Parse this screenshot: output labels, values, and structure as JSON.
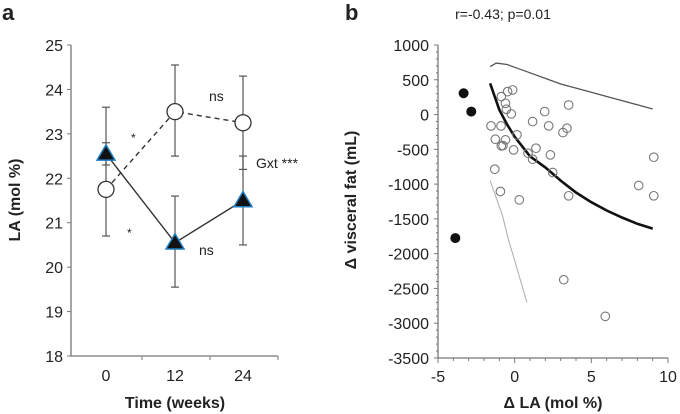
{
  "chart_data": [
    {
      "panel_label": "a",
      "type": "line",
      "xlabel": "Time (weeks)",
      "ylabel": "LA (mol %)",
      "categories": [
        "0",
        "12",
        "24"
      ],
      "x": [
        0,
        12,
        24
      ],
      "ylim": [
        18,
        25
      ],
      "yticks": [
        "18",
        "19",
        "20",
        "21",
        "22",
        "23",
        "24",
        "25"
      ],
      "grid": false,
      "series": [
        {
          "name": "open circles (dashed)",
          "marker": "circle-open",
          "line": "dashed",
          "values": [
            21.75,
            23.5,
            23.25
          ],
          "err_low": [
            20.7,
            22.5,
            22.2
          ],
          "err_high": [
            23.6,
            24.55,
            24.3
          ]
        },
        {
          "name": "filled triangles (solid)",
          "marker": "triangle-filled",
          "line": "solid",
          "values": [
            22.55,
            20.55,
            21.5
          ],
          "err_low": [
            22.3,
            19.55,
            20.5
          ],
          "err_high": [
            22.8,
            21.6,
            22.5
          ]
        }
      ],
      "annotations": {
        "star_upper": "*",
        "star_lower": "*",
        "ns_upper": "ns",
        "ns_lower": "ns",
        "interaction": "Gxt ***"
      },
      "colors": {
        "triangle_fill": "#111111",
        "triangle_edge": "#1e7fc0",
        "line": "#333333"
      }
    },
    {
      "panel_label": "b",
      "type": "scatter",
      "title": "r=-0.43; p=0.01",
      "xlabel": "Δ LA (mol %)",
      "ylabel": "Δ visceral fat (mL)",
      "xlim": [
        -5,
        10
      ],
      "ylim": [
        -3500,
        1000
      ],
      "xticks": [
        "-5",
        "0",
        "5",
        "10"
      ],
      "yticks": [
        "1000",
        "500",
        "0",
        "-500",
        "-1000",
        "-1500",
        "-2000",
        "-2500",
        "-3000",
        "-3500"
      ],
      "grid": false,
      "filled_points": [
        [
          -3.33,
          306
        ],
        [
          -2.83,
          43
        ],
        [
          -3.87,
          -1776
        ]
      ],
      "open_points": [
        [
          -1.54,
          -163
        ],
        [
          -0.89,
          -163
        ],
        [
          -1.26,
          -355
        ],
        [
          -0.87,
          -450
        ],
        [
          -1.3,
          -786
        ],
        [
          -0.93,
          -1106
        ],
        [
          -0.87,
          258
        ],
        [
          -0.46,
          330
        ],
        [
          -0.13,
          354
        ],
        [
          -0.6,
          162
        ],
        [
          -0.54,
          76
        ],
        [
          -0.22,
          9
        ],
        [
          -0.6,
          -364
        ],
        [
          -0.76,
          -446
        ],
        [
          0.15,
          -292
        ],
        [
          -0.07,
          -508
        ],
        [
          0.3,
          -1226
        ],
        [
          1.17,
          -101
        ],
        [
          1.96,
          43
        ],
        [
          2.22,
          -163
        ],
        [
          1.39,
          -484
        ],
        [
          0.87,
          -556
        ],
        [
          1.17,
          -642
        ],
        [
          2.33,
          -580
        ],
        [
          2.48,
          -833
        ],
        [
          3.15,
          -259
        ],
        [
          3.41,
          -197
        ],
        [
          3.52,
          138
        ],
        [
          3.52,
          -1168
        ],
        [
          3.2,
          -2375
        ],
        [
          5.91,
          -2901
        ],
        [
          8.09,
          -1020
        ],
        [
          9.07,
          -613
        ],
        [
          9.07,
          -1168
        ]
      ],
      "fit_curve": [
        [
          -1.6,
          450
        ],
        [
          -1,
          70
        ],
        [
          -0.5,
          -140
        ],
        [
          0,
          -320
        ],
        [
          1,
          -600
        ],
        [
          2,
          -760
        ],
        [
          3,
          -950
        ],
        [
          4,
          -1120
        ],
        [
          5,
          -1260
        ],
        [
          6,
          -1380
        ],
        [
          7,
          -1480
        ],
        [
          8,
          -1570
        ],
        [
          9,
          -1640
        ]
      ],
      "upper_ci": [
        [
          -1.6,
          690
        ],
        [
          -1.2,
          740
        ],
        [
          -0.5,
          720
        ],
        [
          0,
          680
        ],
        [
          1,
          600
        ],
        [
          2,
          520
        ],
        [
          3,
          440
        ],
        [
          4,
          380
        ],
        [
          5,
          320
        ],
        [
          6,
          260
        ],
        [
          7,
          200
        ],
        [
          8,
          140
        ],
        [
          9,
          80
        ]
      ],
      "lower_ci": [
        [
          -1.6,
          -950
        ],
        [
          -1.2,
          -1200
        ],
        [
          -0.8,
          -1450
        ],
        [
          -0.4,
          -1800
        ],
        [
          0,
          -2100
        ],
        [
          0.4,
          -2400
        ],
        [
          0.8,
          -2700
        ]
      ]
    }
  ]
}
